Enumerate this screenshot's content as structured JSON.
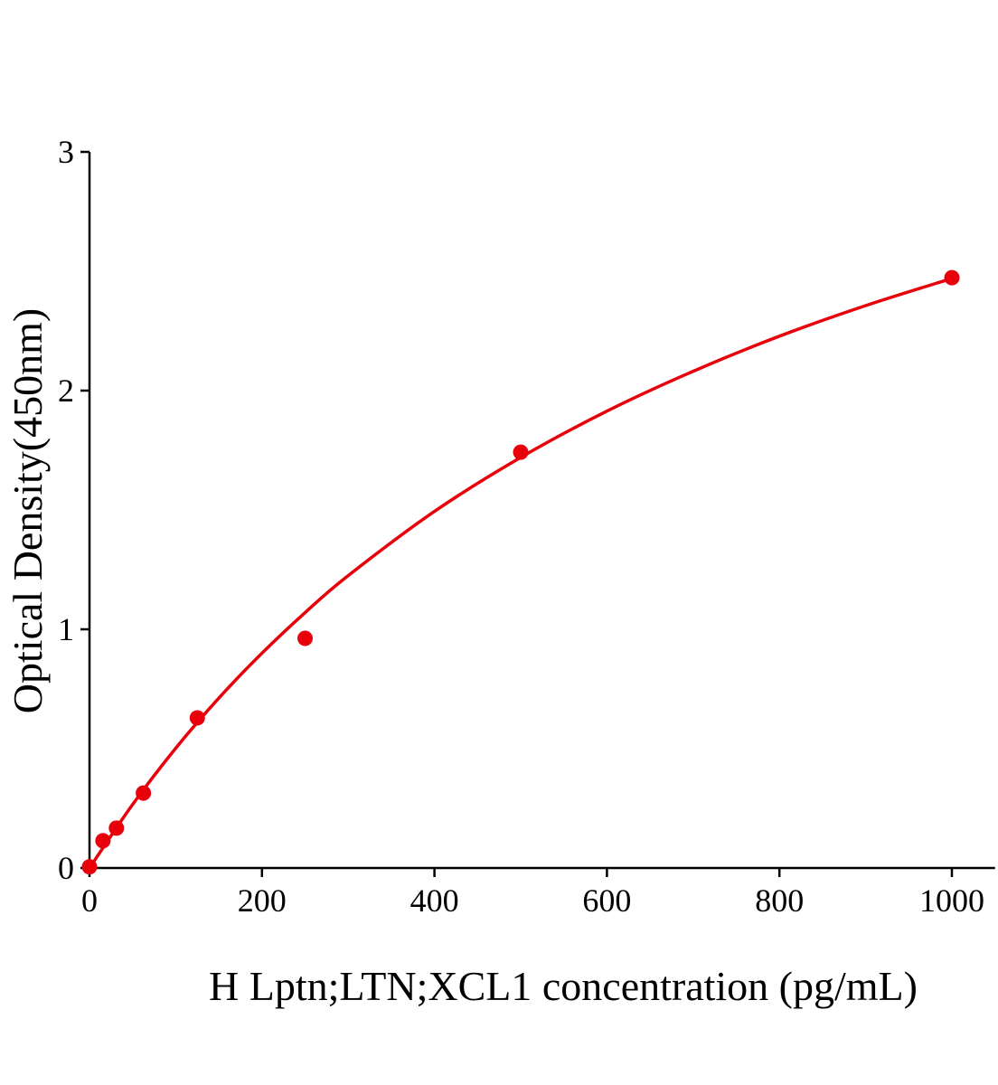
{
  "chart_data": {
    "type": "scatter",
    "title": "",
    "xlabel": "H Lptn;LTN;XCL1 concentration (pg/mL)",
    "ylabel": "Optical Density(450nm)",
    "xlim": [
      0,
      1050
    ],
    "ylim": [
      0,
      3
    ],
    "xticks": [
      0,
      200,
      400,
      600,
      800,
      1000
    ],
    "yticks": [
      0,
      1,
      2,
      3
    ],
    "grid": false,
    "legend": "none",
    "color": "#e8000b",
    "points": {
      "x": [
        0,
        15.6,
        31.25,
        62.5,
        125,
        250,
        500,
        1000
      ],
      "y": [
        0.005,
        0.114,
        0.167,
        0.314,
        0.629,
        0.962,
        1.742,
        2.473
      ]
    },
    "fit_curve": {
      "x": [
        0,
        50,
        100,
        150,
        200,
        250,
        300,
        400,
        500,
        600,
        700,
        800,
        900,
        1000
      ],
      "y": [
        0,
        0.266,
        0.502,
        0.712,
        0.9,
        1.07,
        1.225,
        1.494,
        1.72,
        1.914,
        2.081,
        2.228,
        2.356,
        2.47
      ]
    }
  }
}
